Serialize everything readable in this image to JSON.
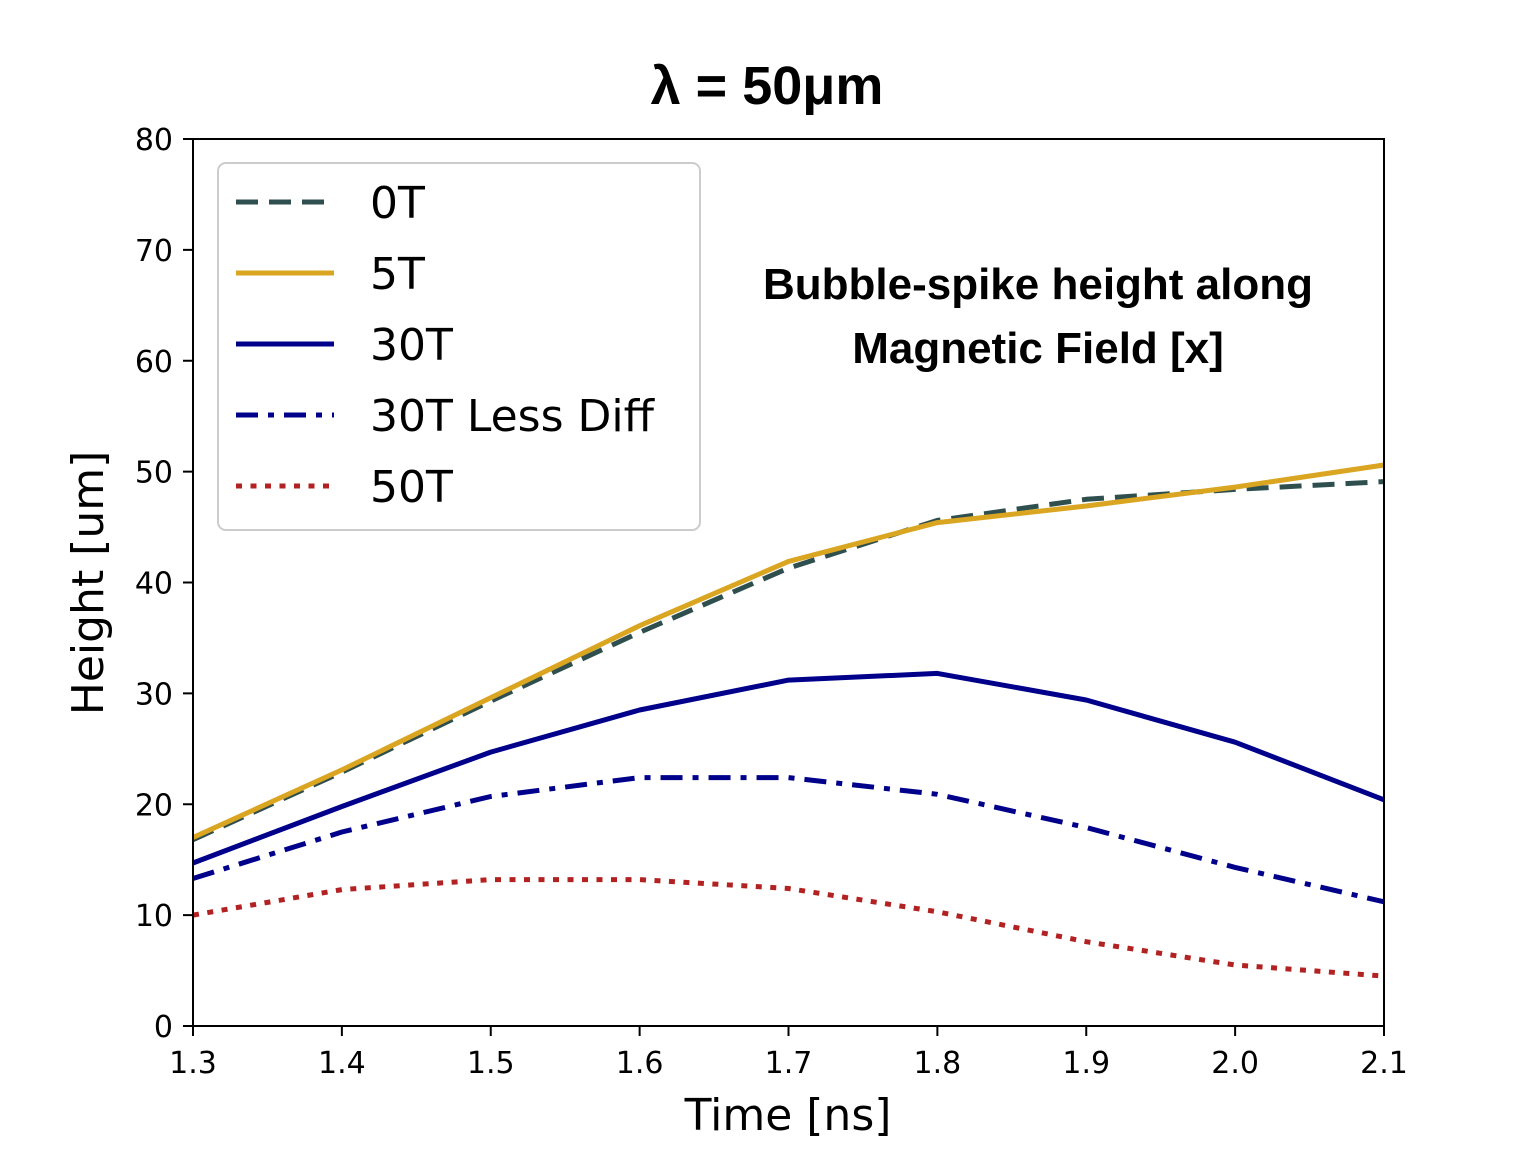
{
  "chart_data": {
    "type": "line",
    "title": "λ = 50μm",
    "annotation": [
      "Bubble-spike height along",
      "Magnetic Field [x]"
    ],
    "xlabel": "Time [ns]",
    "ylabel": "Height [um]",
    "xlim": [
      1.3,
      2.1
    ],
    "ylim": [
      0,
      80
    ],
    "xticks": [
      "1.3",
      "1.4",
      "1.5",
      "1.6",
      "1.7",
      "1.8",
      "1.9",
      "2.0",
      "2.1"
    ],
    "yticks": [
      "0",
      "10",
      "20",
      "30",
      "40",
      "50",
      "60",
      "70",
      "80"
    ],
    "grid": false,
    "legend_position": "upper-left",
    "x": [
      1.3,
      1.4,
      1.5,
      1.6,
      1.7,
      1.8,
      1.9,
      2.0,
      2.1
    ],
    "series": [
      {
        "name": "0T",
        "color": "#2f4f4f",
        "style": "dashed",
        "values": [
          16.8,
          22.9,
          29.3,
          35.5,
          41.3,
          45.6,
          47.5,
          48.4,
          49.1
        ]
      },
      {
        "name": "5T",
        "color": "#daa520",
        "style": "solid",
        "values": [
          17.0,
          23.1,
          29.6,
          36.1,
          41.9,
          45.4,
          46.9,
          48.6,
          50.6
        ]
      },
      {
        "name": "30T",
        "color": "#00008b",
        "style": "solid",
        "values": [
          14.7,
          19.8,
          24.7,
          28.5,
          31.2,
          31.8,
          29.4,
          25.6,
          20.4
        ]
      },
      {
        "name": "30T Less Diff",
        "color": "#00008b",
        "style": "dashdot",
        "values": [
          13.3,
          17.5,
          20.7,
          22.4,
          22.4,
          20.9,
          17.9,
          14.3,
          11.2
        ]
      },
      {
        "name": "50T",
        "color": "#b22222",
        "style": "dotted",
        "values": [
          10.0,
          12.3,
          13.2,
          13.2,
          12.4,
          10.3,
          7.6,
          5.5,
          4.5
        ]
      }
    ]
  }
}
